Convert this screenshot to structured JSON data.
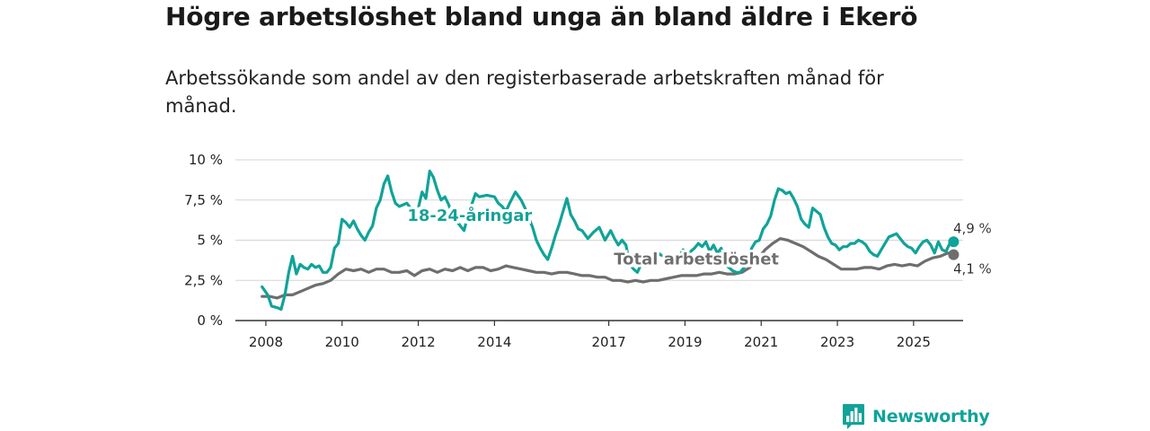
{
  "title": "Högre arbetslöshet bland unga än bland äldre i Ekerö",
  "subtitle": "Arbetssökande som andel av den registerbaserade arbetskraften månad för månad.",
  "brand": {
    "name": "Newsworthy",
    "icon": "bar-chart-speech-bubble-icon",
    "color": "#10a399"
  },
  "chart_data": {
    "type": "line",
    "title": "Högre arbetslöshet bland unga än bland äldre i Ekerö",
    "xlabel": "",
    "ylabel": "",
    "x_range": [
      2007.2,
      2026.3
    ],
    "ylim": [
      0,
      10
    ],
    "yticks": [
      0,
      2.5,
      5,
      7.5,
      10
    ],
    "ytick_labels": [
      "0 %",
      "2,5 %",
      "5 %",
      "7,5 %",
      "10 %"
    ],
    "xticks": [
      2008,
      2010,
      2012,
      2014,
      2017,
      2019,
      2021,
      2023,
      2025
    ],
    "xtick_labels": [
      "2008",
      "2010",
      "2012",
      "2014",
      "2017",
      "2019",
      "2021",
      "2023",
      "2025"
    ],
    "grid": true,
    "series": [
      {
        "name": "18-24-åringar",
        "color": "#10a399",
        "end_label": "4,9 %",
        "points": [
          [
            2007.9,
            2.1
          ],
          [
            2008.05,
            1.6
          ],
          [
            2008.15,
            0.9
          ],
          [
            2008.3,
            0.8
          ],
          [
            2008.4,
            0.7
          ],
          [
            2008.5,
            1.6
          ],
          [
            2008.6,
            3.0
          ],
          [
            2008.7,
            4.0
          ],
          [
            2008.8,
            2.9
          ],
          [
            2008.9,
            3.5
          ],
          [
            2009.0,
            3.3
          ],
          [
            2009.1,
            3.2
          ],
          [
            2009.2,
            3.5
          ],
          [
            2009.3,
            3.3
          ],
          [
            2009.4,
            3.4
          ],
          [
            2009.5,
            3.0
          ],
          [
            2009.6,
            3.0
          ],
          [
            2009.7,
            3.3
          ],
          [
            2009.8,
            4.5
          ],
          [
            2009.9,
            4.8
          ],
          [
            2010.0,
            6.3
          ],
          [
            2010.1,
            6.1
          ],
          [
            2010.2,
            5.8
          ],
          [
            2010.3,
            6.2
          ],
          [
            2010.4,
            5.7
          ],
          [
            2010.5,
            5.3
          ],
          [
            2010.6,
            5.0
          ],
          [
            2010.7,
            5.5
          ],
          [
            2010.8,
            5.9
          ],
          [
            2010.9,
            7.0
          ],
          [
            2011.0,
            7.5
          ],
          [
            2011.1,
            8.5
          ],
          [
            2011.2,
            9.0
          ],
          [
            2011.3,
            8.0
          ],
          [
            2011.4,
            7.3
          ],
          [
            2011.5,
            7.1
          ],
          [
            2011.6,
            7.2
          ],
          [
            2011.7,
            7.3
          ],
          [
            2011.8,
            7.0
          ],
          [
            2011.9,
            6.8
          ],
          [
            2012.0,
            7.0
          ],
          [
            2012.1,
            8.0
          ],
          [
            2012.2,
            7.6
          ],
          [
            2012.3,
            9.3
          ],
          [
            2012.4,
            8.9
          ],
          [
            2012.5,
            8.1
          ],
          [
            2012.6,
            7.5
          ],
          [
            2012.7,
            7.7
          ],
          [
            2012.8,
            7.2
          ],
          [
            2012.9,
            6.5
          ],
          [
            2013.0,
            6.2
          ],
          [
            2013.1,
            5.9
          ],
          [
            2013.2,
            5.6
          ],
          [
            2013.3,
            6.5
          ],
          [
            2013.5,
            7.9
          ],
          [
            2013.6,
            7.7
          ],
          [
            2013.8,
            7.8
          ],
          [
            2014.0,
            7.7
          ],
          [
            2014.1,
            7.3
          ],
          [
            2014.2,
            7.1
          ],
          [
            2014.3,
            6.8
          ],
          [
            2014.4,
            7.3
          ],
          [
            2014.55,
            8.0
          ],
          [
            2014.7,
            7.5
          ],
          [
            2014.8,
            7.0
          ],
          [
            2014.9,
            6.4
          ],
          [
            2015.0,
            5.8
          ],
          [
            2015.1,
            5.0
          ],
          [
            2015.2,
            4.5
          ],
          [
            2015.3,
            4.1
          ],
          [
            2015.4,
            3.8
          ],
          [
            2015.5,
            4.5
          ],
          [
            2015.6,
            5.3
          ],
          [
            2015.7,
            6.0
          ],
          [
            2015.8,
            6.8
          ],
          [
            2015.9,
            7.6
          ],
          [
            2016.0,
            6.6
          ],
          [
            2016.1,
            6.2
          ],
          [
            2016.2,
            5.7
          ],
          [
            2016.3,
            5.6
          ],
          [
            2016.45,
            5.1
          ],
          [
            2016.6,
            5.5
          ],
          [
            2016.75,
            5.8
          ],
          [
            2016.9,
            5.0
          ],
          [
            2017.05,
            5.6
          ],
          [
            2017.15,
            5.1
          ],
          [
            2017.25,
            4.7
          ],
          [
            2017.35,
            5.0
          ],
          [
            2017.45,
            4.7
          ],
          [
            2017.55,
            3.5
          ],
          [
            2017.65,
            3.2
          ],
          [
            2017.75,
            3.0
          ],
          [
            2017.85,
            3.5
          ],
          [
            2017.95,
            3.4
          ],
          [
            2018.05,
            3.6
          ],
          [
            2018.15,
            3.9
          ],
          [
            2018.25,
            4.3
          ],
          [
            2018.35,
            4.1
          ],
          [
            2018.45,
            4.0
          ],
          [
            2018.55,
            3.5
          ],
          [
            2018.65,
            3.6
          ],
          [
            2018.75,
            3.7
          ],
          [
            2018.85,
            4.0
          ],
          [
            2018.95,
            4.4
          ],
          [
            2019.05,
            4.1
          ],
          [
            2019.15,
            4.3
          ],
          [
            2019.25,
            4.5
          ],
          [
            2019.35,
            4.8
          ],
          [
            2019.45,
            4.6
          ],
          [
            2019.55,
            4.9
          ],
          [
            2019.65,
            4.3
          ],
          [
            2019.75,
            4.7
          ],
          [
            2019.85,
            4.2
          ],
          [
            2019.95,
            4.5
          ],
          [
            2020.05,
            3.5
          ],
          [
            2020.15,
            3.3
          ],
          [
            2020.25,
            3.1
          ],
          [
            2020.35,
            3.0
          ],
          [
            2020.45,
            3.0
          ],
          [
            2020.55,
            3.3
          ],
          [
            2020.65,
            3.6
          ],
          [
            2020.75,
            4.5
          ],
          [
            2020.85,
            4.9
          ],
          [
            2020.95,
            5.0
          ],
          [
            2021.05,
            5.7
          ],
          [
            2021.15,
            6.0
          ],
          [
            2021.25,
            6.5
          ],
          [
            2021.35,
            7.5
          ],
          [
            2021.45,
            8.2
          ],
          [
            2021.55,
            8.1
          ],
          [
            2021.65,
            7.9
          ],
          [
            2021.75,
            8.0
          ],
          [
            2021.85,
            7.6
          ],
          [
            2021.95,
            7.1
          ],
          [
            2022.05,
            6.3
          ],
          [
            2022.15,
            6.0
          ],
          [
            2022.25,
            5.8
          ],
          [
            2022.35,
            7.0
          ],
          [
            2022.45,
            6.8
          ],
          [
            2022.55,
            6.6
          ],
          [
            2022.65,
            5.8
          ],
          [
            2022.75,
            5.2
          ],
          [
            2022.85,
            4.8
          ],
          [
            2022.95,
            4.7
          ],
          [
            2023.05,
            4.4
          ],
          [
            2023.15,
            4.6
          ],
          [
            2023.25,
            4.6
          ],
          [
            2023.35,
            4.8
          ],
          [
            2023.45,
            4.8
          ],
          [
            2023.55,
            5.0
          ],
          [
            2023.65,
            4.9
          ],
          [
            2023.75,
            4.7
          ],
          [
            2023.85,
            4.3
          ],
          [
            2023.95,
            4.1
          ],
          [
            2024.05,
            4.0
          ],
          [
            2024.15,
            4.4
          ],
          [
            2024.25,
            4.8
          ],
          [
            2024.35,
            5.2
          ],
          [
            2024.45,
            5.3
          ],
          [
            2024.55,
            5.4
          ],
          [
            2024.65,
            5.1
          ],
          [
            2024.75,
            4.8
          ],
          [
            2024.85,
            4.6
          ],
          [
            2024.95,
            4.5
          ],
          [
            2025.05,
            4.2
          ],
          [
            2025.15,
            4.6
          ],
          [
            2025.25,
            4.9
          ],
          [
            2025.35,
            5.0
          ],
          [
            2025.45,
            4.7
          ],
          [
            2025.55,
            4.2
          ],
          [
            2025.65,
            4.9
          ],
          [
            2025.75,
            4.4
          ],
          [
            2025.85,
            4.3
          ],
          [
            2025.95,
            4.8
          ],
          [
            2026.05,
            4.9
          ]
        ]
      },
      {
        "name": "Total arbetslöshet",
        "color": "#6e6e6e",
        "end_label": "4,1 %",
        "points": [
          [
            2007.9,
            1.5
          ],
          [
            2008.1,
            1.5
          ],
          [
            2008.3,
            1.4
          ],
          [
            2008.4,
            1.5
          ],
          [
            2008.5,
            1.6
          ],
          [
            2008.7,
            1.6
          ],
          [
            2008.9,
            1.8
          ],
          [
            2009.1,
            2.0
          ],
          [
            2009.3,
            2.2
          ],
          [
            2009.5,
            2.3
          ],
          [
            2009.7,
            2.5
          ],
          [
            2009.9,
            2.9
          ],
          [
            2010.1,
            3.2
          ],
          [
            2010.3,
            3.1
          ],
          [
            2010.5,
            3.2
          ],
          [
            2010.7,
            3.0
          ],
          [
            2010.9,
            3.2
          ],
          [
            2011.1,
            3.2
          ],
          [
            2011.3,
            3.0
          ],
          [
            2011.5,
            3.0
          ],
          [
            2011.7,
            3.1
          ],
          [
            2011.9,
            2.8
          ],
          [
            2012.1,
            3.1
          ],
          [
            2012.3,
            3.2
          ],
          [
            2012.5,
            3.0
          ],
          [
            2012.7,
            3.2
          ],
          [
            2012.9,
            3.1
          ],
          [
            2013.1,
            3.3
          ],
          [
            2013.3,
            3.1
          ],
          [
            2013.5,
            3.3
          ],
          [
            2013.7,
            3.3
          ],
          [
            2013.9,
            3.1
          ],
          [
            2014.1,
            3.2
          ],
          [
            2014.3,
            3.4
          ],
          [
            2014.5,
            3.3
          ],
          [
            2014.7,
            3.2
          ],
          [
            2014.9,
            3.1
          ],
          [
            2015.1,
            3.0
          ],
          [
            2015.3,
            3.0
          ],
          [
            2015.5,
            2.9
          ],
          [
            2015.7,
            3.0
          ],
          [
            2015.9,
            3.0
          ],
          [
            2016.1,
            2.9
          ],
          [
            2016.3,
            2.8
          ],
          [
            2016.5,
            2.8
          ],
          [
            2016.7,
            2.7
          ],
          [
            2016.9,
            2.7
          ],
          [
            2017.1,
            2.5
          ],
          [
            2017.3,
            2.5
          ],
          [
            2017.5,
            2.4
          ],
          [
            2017.7,
            2.5
          ],
          [
            2017.9,
            2.4
          ],
          [
            2018.1,
            2.5
          ],
          [
            2018.3,
            2.5
          ],
          [
            2018.5,
            2.6
          ],
          [
            2018.7,
            2.7
          ],
          [
            2018.9,
            2.8
          ],
          [
            2019.1,
            2.8
          ],
          [
            2019.3,
            2.8
          ],
          [
            2019.5,
            2.9
          ],
          [
            2019.7,
            2.9
          ],
          [
            2019.9,
            3.0
          ],
          [
            2020.1,
            2.9
          ],
          [
            2020.3,
            2.9
          ],
          [
            2020.5,
            3.0
          ],
          [
            2020.7,
            3.3
          ],
          [
            2020.9,
            3.8
          ],
          [
            2021.1,
            4.4
          ],
          [
            2021.3,
            4.8
          ],
          [
            2021.5,
            5.1
          ],
          [
            2021.7,
            5.0
          ],
          [
            2021.9,
            4.8
          ],
          [
            2022.1,
            4.6
          ],
          [
            2022.3,
            4.3
          ],
          [
            2022.5,
            4.0
          ],
          [
            2022.7,
            3.8
          ],
          [
            2022.9,
            3.5
          ],
          [
            2023.1,
            3.2
          ],
          [
            2023.3,
            3.2
          ],
          [
            2023.5,
            3.2
          ],
          [
            2023.7,
            3.3
          ],
          [
            2023.9,
            3.3
          ],
          [
            2024.1,
            3.2
          ],
          [
            2024.3,
            3.4
          ],
          [
            2024.5,
            3.5
          ],
          [
            2024.7,
            3.4
          ],
          [
            2024.9,
            3.5
          ],
          [
            2025.1,
            3.4
          ],
          [
            2025.3,
            3.7
          ],
          [
            2025.5,
            3.9
          ],
          [
            2025.7,
            4.0
          ],
          [
            2025.9,
            4.2
          ],
          [
            2026.05,
            4.1
          ]
        ]
      }
    ],
    "annotations": [
      {
        "text": "18-24-åringar",
        "series": "18-24-åringar",
        "at": [
          2013.35,
          6.2
        ]
      },
      {
        "text": "Total arbetslöshet",
        "series": "Total arbetslöshet",
        "at": [
          2019.3,
          3.5
        ]
      }
    ]
  }
}
